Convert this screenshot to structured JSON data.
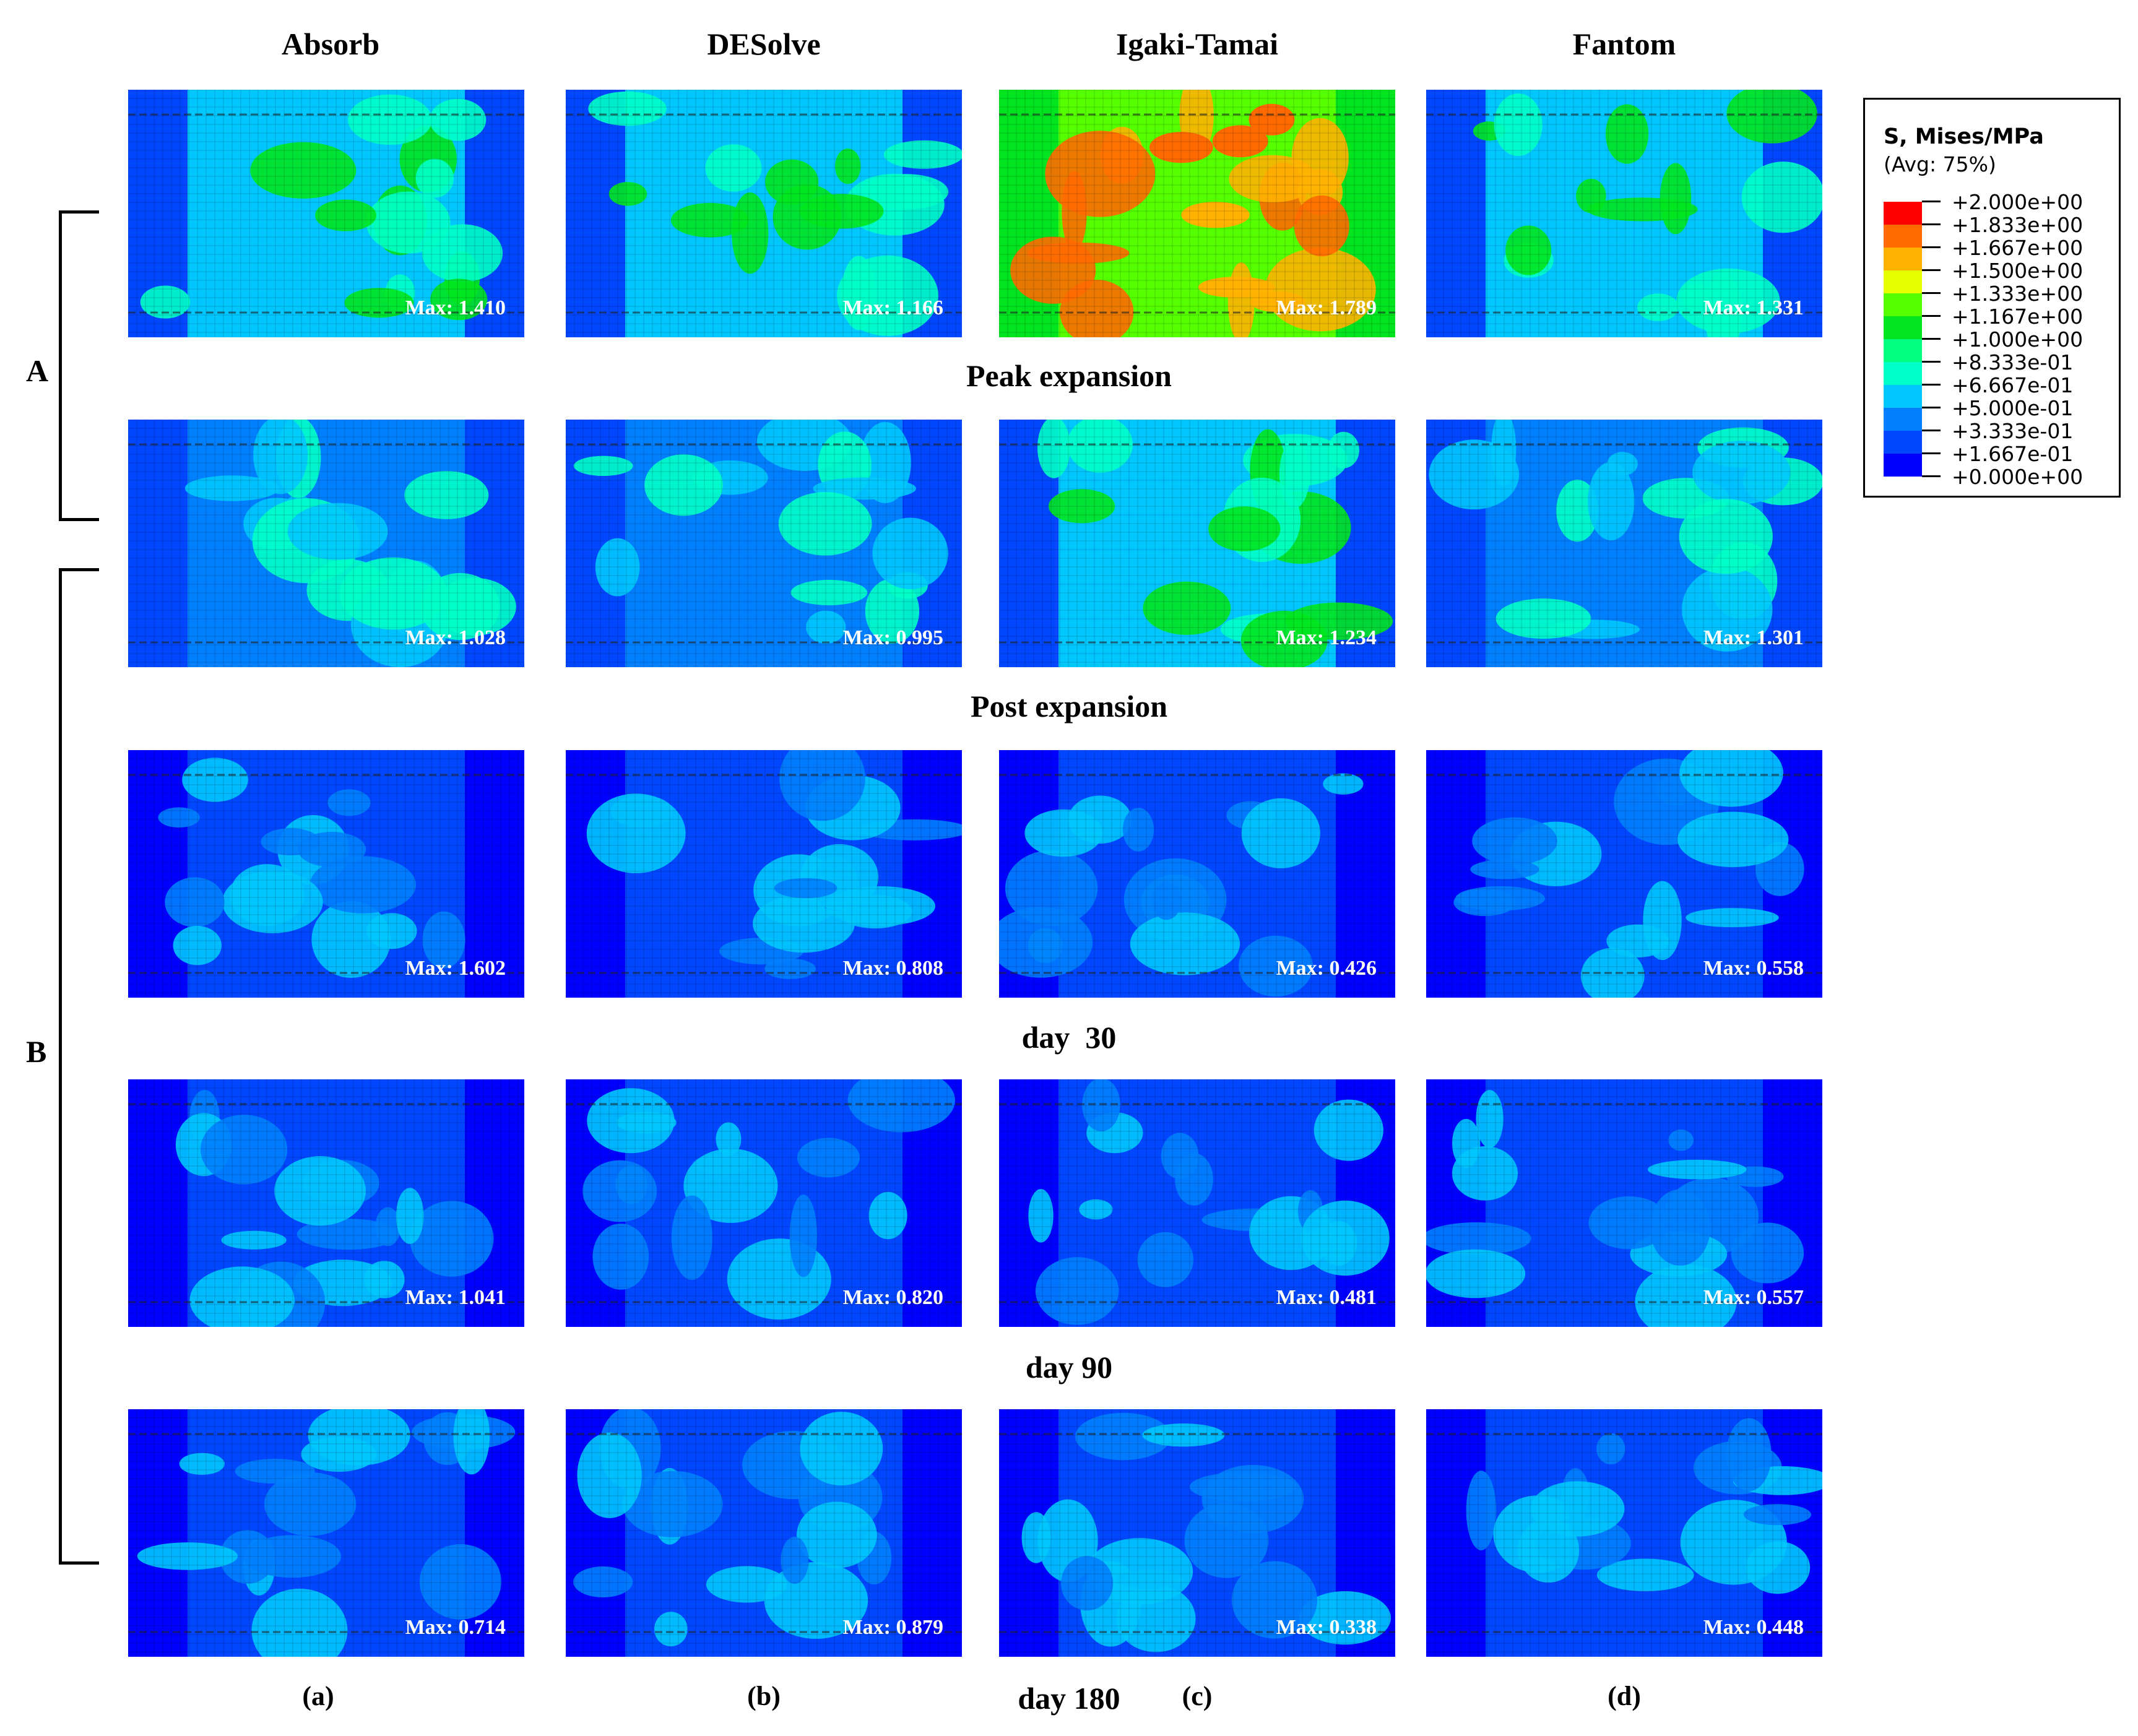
{
  "columns": [
    "Absorb",
    "DESolve",
    "Igaki-Tamai",
    "Fantom"
  ],
  "rows": [
    {
      "label": "",
      "max": [
        "Max: 1.410",
        "Max: 1.166",
        "Max: 1.789",
        "Max: 1.331"
      ]
    },
    {
      "label": "Peak expansion",
      "max": [
        "Max: 1.028",
        "Max: 0.995",
        "Max: 1.234",
        "Max: 1.301"
      ]
    },
    {
      "label": "Post expansion",
      "max": [
        "Max: 1.602",
        "Max: 0.808",
        "Max: 0.426",
        "Max: 0.558"
      ]
    },
    {
      "label": "day  30",
      "max": [
        "Max: 1.041",
        "Max: 0.820",
        "Max: 0.481",
        "Max: 0.557"
      ]
    },
    {
      "label": "day 90",
      "max": [
        "Max: 0.714",
        "Max: 0.879",
        "Max: 0.338",
        "Max: 0.448"
      ]
    }
  ],
  "bottom_label": "day 180",
  "sublabels": [
    "(a)",
    "(b)",
    "(c)",
    "(d)"
  ],
  "groups": {
    "a": "A",
    "b": "B"
  },
  "legend": {
    "title": "S, Mises/MPa",
    "subtitle": "(Avg: 75%)",
    "values": [
      "+2.000e+00",
      "+1.833e+00",
      "+1.667e+00",
      "+1.500e+00",
      "+1.333e+00",
      "+1.167e+00",
      "+1.000e+00",
      "+8.333e-01",
      "+6.667e-01",
      "+5.000e-01",
      "+3.333e-01",
      "+1.667e-01",
      "+0.000e+00"
    ],
    "colors": [
      "#ff0000",
      "#ff6a00",
      "#ffb300",
      "#e6ff00",
      "#55ff00",
      "#00e51f",
      "#00ff80",
      "#00ffc8",
      "#00c8ff",
      "#0080ff",
      "#0047ff",
      "#0000ff"
    ]
  }
}
